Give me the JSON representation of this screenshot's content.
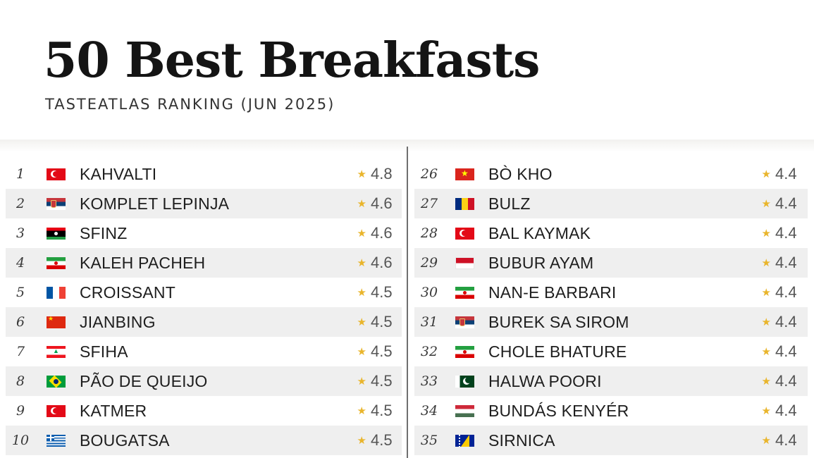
{
  "header": {
    "title": "50 Best Breakfasts",
    "subtitle": "TASTEATLAS RANKING (JUN 2025)"
  },
  "colors": {
    "star": "#e9b52c",
    "row_shade": "#efefef",
    "text": "#1e1e1e"
  },
  "star_icon": "★",
  "ranking": [
    {
      "rank": "1",
      "flag": "turkey-flag-icon",
      "name": "KAHVALTI",
      "rating": "4.8"
    },
    {
      "rank": "2",
      "flag": "serbia-flag-icon",
      "name": "KOMPLET LEPINJA",
      "rating": "4.6"
    },
    {
      "rank": "3",
      "flag": "libya-flag-icon",
      "name": "SFINZ",
      "rating": "4.6"
    },
    {
      "rank": "4",
      "flag": "iran-flag-icon",
      "name": "KALEH PACHEH",
      "rating": "4.6"
    },
    {
      "rank": "5",
      "flag": "france-flag-icon",
      "name": "CROISSANT",
      "rating": "4.5"
    },
    {
      "rank": "6",
      "flag": "china-flag-icon",
      "name": "JIANBING",
      "rating": "4.5"
    },
    {
      "rank": "7",
      "flag": "lebanon-flag-icon",
      "name": "SFIHA",
      "rating": "4.5"
    },
    {
      "rank": "8",
      "flag": "brazil-flag-icon",
      "name": "PÃO DE QUEIJO",
      "rating": "4.5"
    },
    {
      "rank": "9",
      "flag": "turkey-flag-icon",
      "name": "KATMER",
      "rating": "4.5"
    },
    {
      "rank": "10",
      "flag": "greece-flag-icon",
      "name": "BOUGATSA",
      "rating": "4.5"
    },
    {
      "rank": "26",
      "flag": "vietnam-flag-icon",
      "name": "BÒ KHO",
      "rating": "4.4"
    },
    {
      "rank": "27",
      "flag": "romania-flag-icon",
      "name": "BULZ",
      "rating": "4.4"
    },
    {
      "rank": "28",
      "flag": "turkey-flag-icon",
      "name": "BAL KAYMAK",
      "rating": "4.4"
    },
    {
      "rank": "29",
      "flag": "indonesia-flag-icon",
      "name": "BUBUR AYAM",
      "rating": "4.4"
    },
    {
      "rank": "30",
      "flag": "iran-flag-icon",
      "name": "NAN-E BARBARI",
      "rating": "4.4"
    },
    {
      "rank": "31",
      "flag": "serbia-flag-icon",
      "name": "BUREK SA SIROM",
      "rating": "4.4"
    },
    {
      "rank": "32",
      "flag": "iran-flag-icon",
      "name": "CHOLE BHATURE",
      "rating": "4.4"
    },
    {
      "rank": "33",
      "flag": "pakistan-flag-icon",
      "name": "HALWA POORI",
      "rating": "4.4"
    },
    {
      "rank": "34",
      "flag": "hungary-flag-icon",
      "name": "BUNDÁS KENYÉR",
      "rating": "4.4"
    },
    {
      "rank": "35",
      "flag": "bosnia-flag-icon",
      "name": "SIRNICA",
      "rating": "4.4"
    }
  ]
}
